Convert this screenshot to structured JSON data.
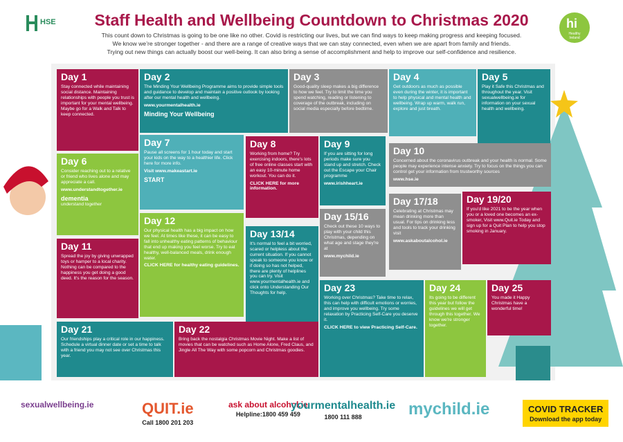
{
  "header": {
    "logo": "HSE",
    "title": "Staff Health and Wellbeing Countdown to Christmas 2020",
    "intro": [
      "This count down to Christmas is going to be one like no other.  Covid is restricting our lives, but we can find ways to keep making progress and keeping focused.",
      "We know we’re stronger together - and there are a range of creative ways that we can stay connected, even when we are apart from family and friends.",
      "Trying out new things can actually boost our well-being. It can also bring a sense of accomplishment and help to improve our self-confidence and resilience."
    ],
    "badge": "hi",
    "badge_sub": "Healthy Ireland"
  },
  "tiles": [
    {
      "day": "Day 1",
      "text": "Stay connected while maintaining social distance. Maintaining relationships with people you trust is important for your mental wellbeing. Maybe go for a Walk and Talk to keep connected."
    },
    {
      "day": "Day 2",
      "text": "The Minding Your Wellbeing Programme aims to provide simple tools and guidance to develop and maintain a positive outlook by looking after our mental health and wellbeing.",
      "link": "www.yourmentalhealth.ie",
      "extra": "Minding Your Wellbeing"
    },
    {
      "day": "Day 3",
      "text": "Good-quality sleep makes a big difference to how we feel. Try to limit the time you spend watching, reading or listening to coverage of the outbreak, including on social media especially before bedtime."
    },
    {
      "day": "Day 4",
      "text": "Get outdoors as much as possible even during the winter, it is important to help physical and mental health and wellbeing. Wrap up warm, walk run, explore and just breath."
    },
    {
      "day": "Day 5",
      "text": "Play it Safe this Christmas and throughout the year. Visit sexualwellbeing.ie for information on your sexual health and wellbeing."
    },
    {
      "day": "Day 6",
      "text": "Consider reaching out to a relative or friend who lives alone and may appreciate a call.",
      "link": "www.understandtogether.ie",
      "extra": "dementia",
      "extra2": "understand together"
    },
    {
      "day": "Day 7",
      "text": "Pause all screens for 1 hour today and start your kids on the way to a healthier life. Click here for more info.",
      "link": "Visit www.makeastart.ie",
      "extra": "START"
    },
    {
      "day": "Day 8",
      "text": "Working from home? Try exercising indoors, there's lots of free online classes start with an easy 10-minute home workout. You can do it.",
      "link": "CLICK HERE for more information."
    },
    {
      "day": "Day 9",
      "text": "If you are sitting for long periods make sure you stand up and stretch. Check out the Escape your Chair programme",
      "link": "www.irishheart.ie"
    },
    {
      "day": "Day 10",
      "text": "Concerned about the coronavirus outbreak and your health is normal.  Some people may experience intense anxiety. Try to focus on the things you can control get your information from trustworthy sources",
      "link": "www.hse.ie"
    },
    {
      "day": "Day 11",
      "text": "Spread the joy by giving unwrapped toys or hamper to a local charity. Nothing can be compared to the happiness you get doing a good deed. It's the reason for the season."
    },
    {
      "day": "Day 12",
      "text": "Our physical health has a big impact on how we feel. At times like these, it can be easy to fall into unhealthy eating patterns of behaviour that end up making you feel worse. Try to eat healthy, well-balanced meals, drink enough water.",
      "link": "CLICK HERE for healthy eating guidelines."
    },
    {
      "day": "Day 13/14",
      "text": "It's normal to feel a bit worried, scared or helpless about the current situation. If you cannot speak to someone you know or if doing so has not helped, there are plenty of helplines you can try. Visit www.yourmentalhealth.ie and click onto Understanding Our Thoughts for help."
    },
    {
      "day": "Day 15/16",
      "text": "Check out these 10 ways to play with your child this Christmas, depending on what age and stage they're at",
      "link": "www.mychild.ie"
    },
    {
      "day": "Day 17/18",
      "text": "Celebrating at Christmas may mean drinking more than usual. For tips on drinking less and tools to track your drinking visit",
      "link": "www.askaboutalcohol.ie"
    },
    {
      "day": "Day 19/20",
      "text": "If you'd like 2021 to be the year when you or a loved one becomes an ex-smoker, Visit www.Quit.ie Today and sign up for a Quit Plan to help you stop smoking in January."
    },
    {
      "day": "Day 21",
      "text": "Our friendships play a critical role in our happiness. Schedule a virtual dinner date or set a time to talk with a friend you may not see over Christmas this year."
    },
    {
      "day": "Day 22",
      "text": "Bring back the nostalgia Christmas Movie Night. Make a list of movies that can be watched such as Home Alone, Fred Claus, and Jingle All The Way with some popcorn and Christmas goodies."
    },
    {
      "day": "Day 23",
      "text": "Working over Christmas? Take time to relax, this can help with difficult emotions or worries, and improve you wellbeing. Try some relaxation by Practicing Self-Care you deserve it.",
      "link": "CLICK HERE to view Practicing Self-Care."
    },
    {
      "day": "Day 24",
      "text": "Its going to be different this year but follow the guidelines we will get through this together. We know we're stronger together."
    },
    {
      "day": "Day 25",
      "text": "You made it Happy Christmas have a wonderful time!"
    }
  ],
  "footer": [
    {
      "name": "sexualwellbeing.ie"
    },
    {
      "name": "QUIT.ie",
      "sub": "Call 1800 201 203"
    },
    {
      "name": "ask about alcohol.ie",
      "sub": "Helpline:1800 459 459"
    },
    {
      "name": "yourmentalhealth.ie",
      "sub": "1800 111 888"
    },
    {
      "name": "mychild.ie"
    },
    {
      "name": "COVID TRACKER",
      "sub": "Download the app today"
    }
  ]
}
